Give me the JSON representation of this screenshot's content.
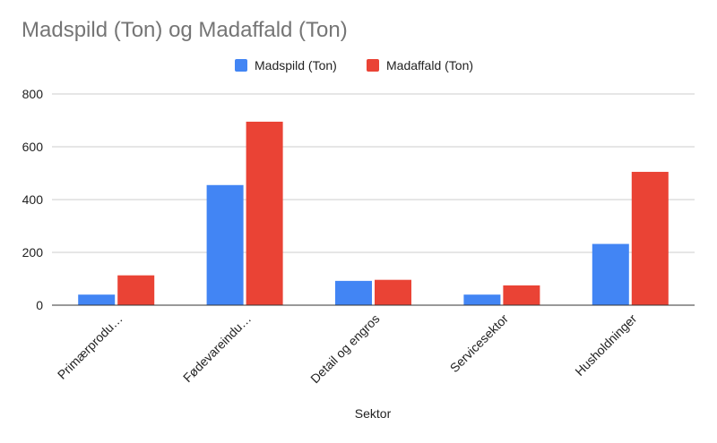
{
  "chart_data": {
    "type": "bar",
    "title": "Madspild (Ton) og Madaffald (Ton)",
    "xlabel": "Sektor",
    "ylabel": "",
    "categories": [
      "Primærprodu…",
      "Fødevareindu…",
      "Detail og engros",
      "Servicesektor",
      "Husholdninger"
    ],
    "series": [
      {
        "name": "Madspild (Ton)",
        "color": "#4285f4",
        "values": [
          40,
          455,
          92,
          40,
          232
        ]
      },
      {
        "name": "Madaffald (Ton)",
        "color": "#ea4335",
        "values": [
          113,
          695,
          96,
          75,
          505
        ]
      }
    ],
    "ylim": [
      0,
      800
    ],
    "yticks": [
      0,
      200,
      400,
      600,
      800
    ],
    "grid": true,
    "legend_position": "top-center"
  }
}
